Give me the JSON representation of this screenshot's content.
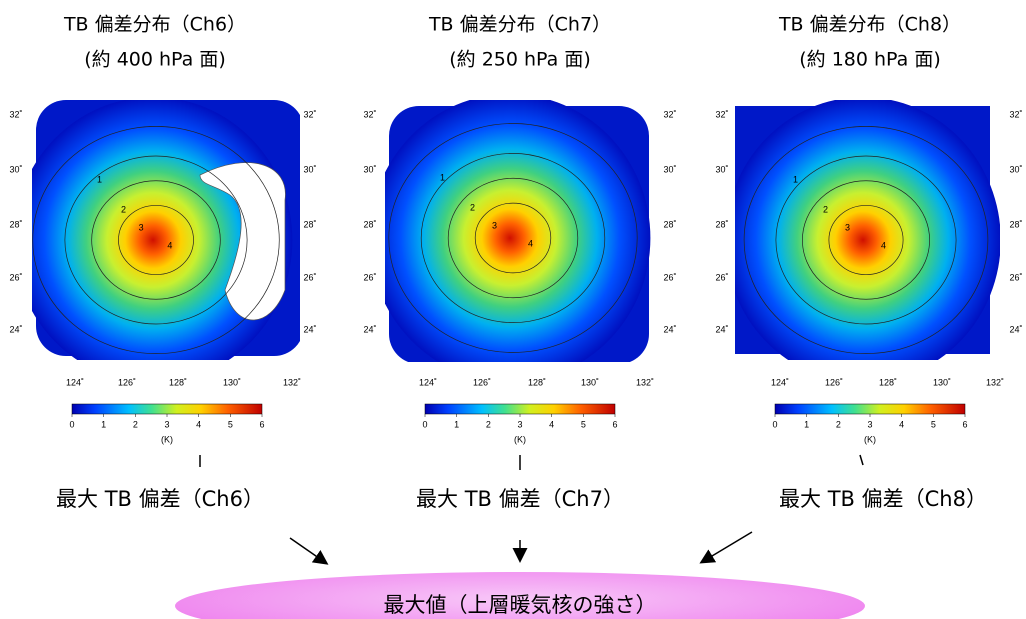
{
  "panels": [
    {
      "title": "TB 偏差分布（Ch6）",
      "subtitle": "(約 400 hPa 面)",
      "lat_labels": [
        "32˚",
        "30˚",
        "28˚",
        "26˚",
        "24˚"
      ],
      "lon_labels": [
        "124˚",
        "126˚",
        "128˚",
        "130˚",
        "132˚"
      ],
      "colorbar_ticks": [
        "0",
        "1",
        "2",
        "3",
        "4",
        "5",
        "6"
      ],
      "colorbar_unit": "(K)",
      "contour_labels": [
        "1",
        "2",
        "3",
        "4"
      ],
      "result_label": "最大 TB 偏差（Ch6）"
    },
    {
      "title": "TB 偏差分布（Ch7）",
      "subtitle": "(約 250 hPa 面)",
      "lat_labels": [
        "32˚",
        "30˚",
        "28˚",
        "26˚",
        "24˚"
      ],
      "lon_labels": [
        "124˚",
        "126˚",
        "128˚",
        "130˚",
        "132˚"
      ],
      "colorbar_ticks": [
        "0",
        "1",
        "2",
        "3",
        "4",
        "5",
        "6"
      ],
      "colorbar_unit": "(K)",
      "contour_labels": [
        "1",
        "2",
        "3",
        "4"
      ],
      "result_label": "最大 TB 偏差（Ch7）"
    },
    {
      "title": "TB 偏差分布（Ch8）",
      "subtitle": "(約 180 hPa 面)",
      "lat_labels": [
        "32˚",
        "30˚",
        "28˚",
        "26˚",
        "24˚"
      ],
      "lon_labels": [
        "124˚",
        "126˚",
        "128˚",
        "130˚",
        "132˚"
      ],
      "colorbar_ticks": [
        "0",
        "1",
        "2",
        "3",
        "4",
        "5",
        "6"
      ],
      "colorbar_unit": "(K)",
      "contour_labels": [
        "1",
        "2",
        "3",
        "4"
      ],
      "result_label": "最大 TB 偏差（Ch8）"
    }
  ],
  "output": {
    "label": "最大値（上層暖気核の強さ）"
  }
}
